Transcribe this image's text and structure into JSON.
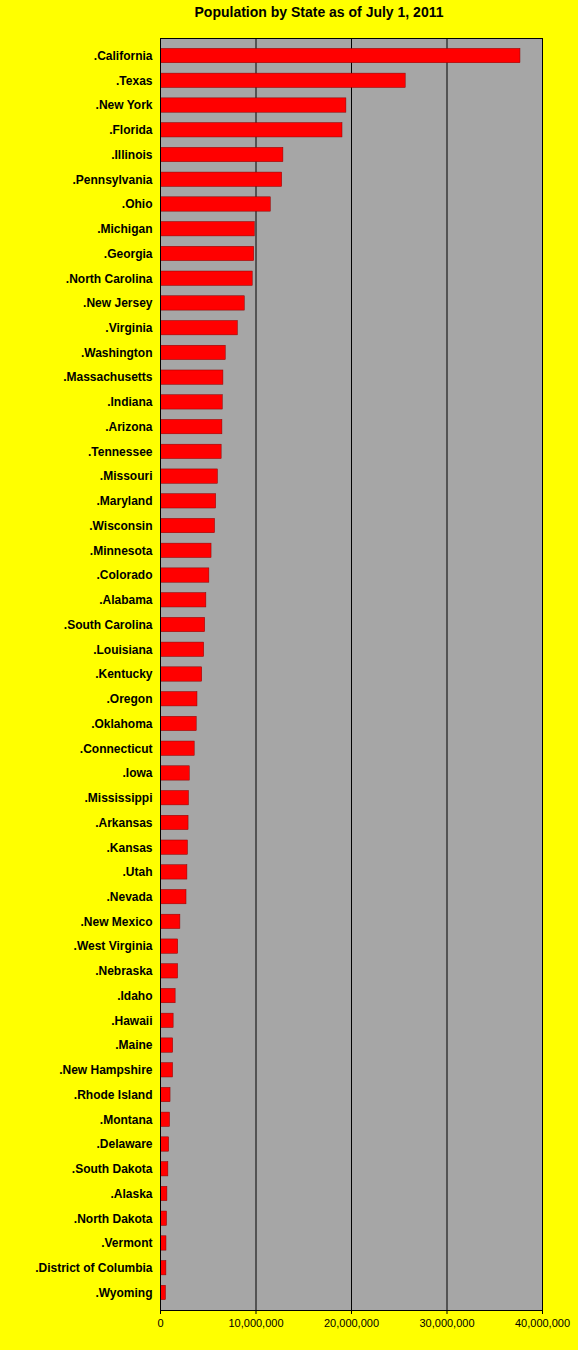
{
  "chart_data": {
    "type": "bar",
    "orientation": "horizontal",
    "title": "Population by State as of July 1, 2011",
    "categories": [
      ".California",
      ".Texas",
      ".New York",
      ".Florida",
      ".Illinois",
      ".Pennsylvania",
      ".Ohio",
      ".Michigan",
      ".Georgia",
      ".North Carolina",
      ".New Jersey",
      ".Virginia",
      ".Washington",
      ".Massachusetts",
      ".Indiana",
      ".Arizona",
      ".Tennessee",
      ".Missouri",
      ".Maryland",
      ".Wisconsin",
      ".Minnesota",
      ".Colorado",
      ".Alabama",
      ".South Carolina",
      ".Louisiana",
      ".Kentucky",
      ".Oregon",
      ".Oklahoma",
      ".Connecticut",
      ".Iowa",
      ".Mississippi",
      ".Arkansas",
      ".Kansas",
      ".Utah",
      ".Nevada",
      ".New Mexico",
      ".West Virginia",
      ".Nebraska",
      ".Idaho",
      ".Hawaii",
      ".Maine",
      ".New Hampshire",
      ".Rhode Island",
      ".Montana",
      ".Delaware",
      ".South Dakota",
      ".Alaska",
      ".North Dakota",
      ".Vermont",
      ".District of Columbia",
      ".Wyoming"
    ],
    "values": [
      37691912,
      25674681,
      19465197,
      19057542,
      12869257,
      12742886,
      11544951,
      9876187,
      9815210,
      9656401,
      8821155,
      8096604,
      6830038,
      6587536,
      6516922,
      6482505,
      6403353,
      6010688,
      5828289,
      5711767,
      5344861,
      5116796,
      4802740,
      4679230,
      4574836,
      4369356,
      3871859,
      3791508,
      3580709,
      3062309,
      2978512,
      2937979,
      2871238,
      2817222,
      2723322,
      2082224,
      1855364,
      1842641,
      1584985,
      1374810,
      1328188,
      1318194,
      1051302,
      998199,
      907135,
      824082,
      722718,
      683932,
      626431,
      617996,
      568158
    ],
    "color": "#ff0000",
    "xlim": [
      0,
      40000000
    ],
    "xticks": [
      0,
      {
        "value": 10000000,
        "label": "10,000,000"
      },
      {
        "value": 20000000,
        "label": "20,000,000"
      },
      {
        "value": 30000000,
        "label": "30,000,000"
      },
      {
        "value": 40000000,
        "label": "40,000,000"
      }
    ],
    "grid": true
  }
}
